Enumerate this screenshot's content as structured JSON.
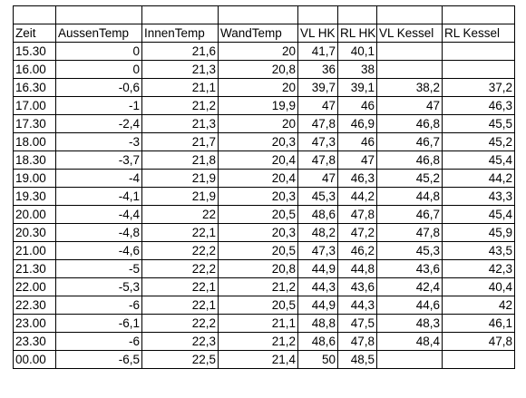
{
  "table": {
    "headers": [
      "Zeit",
      "AussenTemp",
      "InnenTemp",
      "WandTemp",
      "VL HK",
      "RL HK",
      "VL Kessel",
      "RL Kessel"
    ],
    "rows": [
      [
        "15.30",
        "0",
        "21,6",
        "20",
        "41,7",
        "40,1",
        "",
        ""
      ],
      [
        "16.00",
        "0",
        "21,3",
        "20,8",
        "36",
        "38",
        "",
        ""
      ],
      [
        "16.30",
        "-0,6",
        "21,1",
        "20",
        "39,7",
        "39,1",
        "38,2",
        "37,2"
      ],
      [
        "17.00",
        "-1",
        "21,2",
        "19,9",
        "47",
        "46",
        "47",
        "46,3"
      ],
      [
        "17.30",
        "-2,4",
        "21,3",
        "20",
        "47,8",
        "46,9",
        "46,8",
        "45,5"
      ],
      [
        "18.00",
        "-3",
        "21,7",
        "20,3",
        "47,3",
        "46",
        "46,7",
        "45,2"
      ],
      [
        "18.30",
        "-3,7",
        "21,8",
        "20,4",
        "47,8",
        "47",
        "46,8",
        "45,4"
      ],
      [
        "19.00",
        "-4",
        "21,9",
        "20,4",
        "47",
        "46,3",
        "45,2",
        "44,2"
      ],
      [
        "19.30",
        "-4,1",
        "21,9",
        "20,3",
        "45,3",
        "44,2",
        "44,8",
        "43,3"
      ],
      [
        "20.00",
        "-4,4",
        "22",
        "20,5",
        "48,6",
        "47,8",
        "46,7",
        "45,4"
      ],
      [
        "20.30",
        "-4,8",
        "22,1",
        "20,3",
        "48,2",
        "47,2",
        "47,8",
        "45,9"
      ],
      [
        "21.00",
        "-4,6",
        "22,2",
        "20,5",
        "47,3",
        "46,2",
        "45,3",
        "43,5"
      ],
      [
        "21.30",
        "-5",
        "22,2",
        "20,8",
        "44,9",
        "44,8",
        "43,6",
        "42,3"
      ],
      [
        "22.00",
        "-5,3",
        "22,1",
        "21,2",
        "44,3",
        "43,6",
        "42,4",
        "40,4"
      ],
      [
        "22.30",
        "-6",
        "22,1",
        "20,5",
        "44,9",
        "44,3",
        "44,6",
        "42"
      ],
      [
        "23.00",
        "-6,1",
        "22,2",
        "21,1",
        "48,8",
        "47,5",
        "48,3",
        "46,1"
      ],
      [
        "23.30",
        "-6",
        "22,3",
        "21,2",
        "48,6",
        "47,8",
        "48,4",
        "47,8"
      ],
      [
        "00.00",
        "-6,5",
        "22,5",
        "21,4",
        "50",
        "48,5",
        "",
        ""
      ]
    ]
  }
}
